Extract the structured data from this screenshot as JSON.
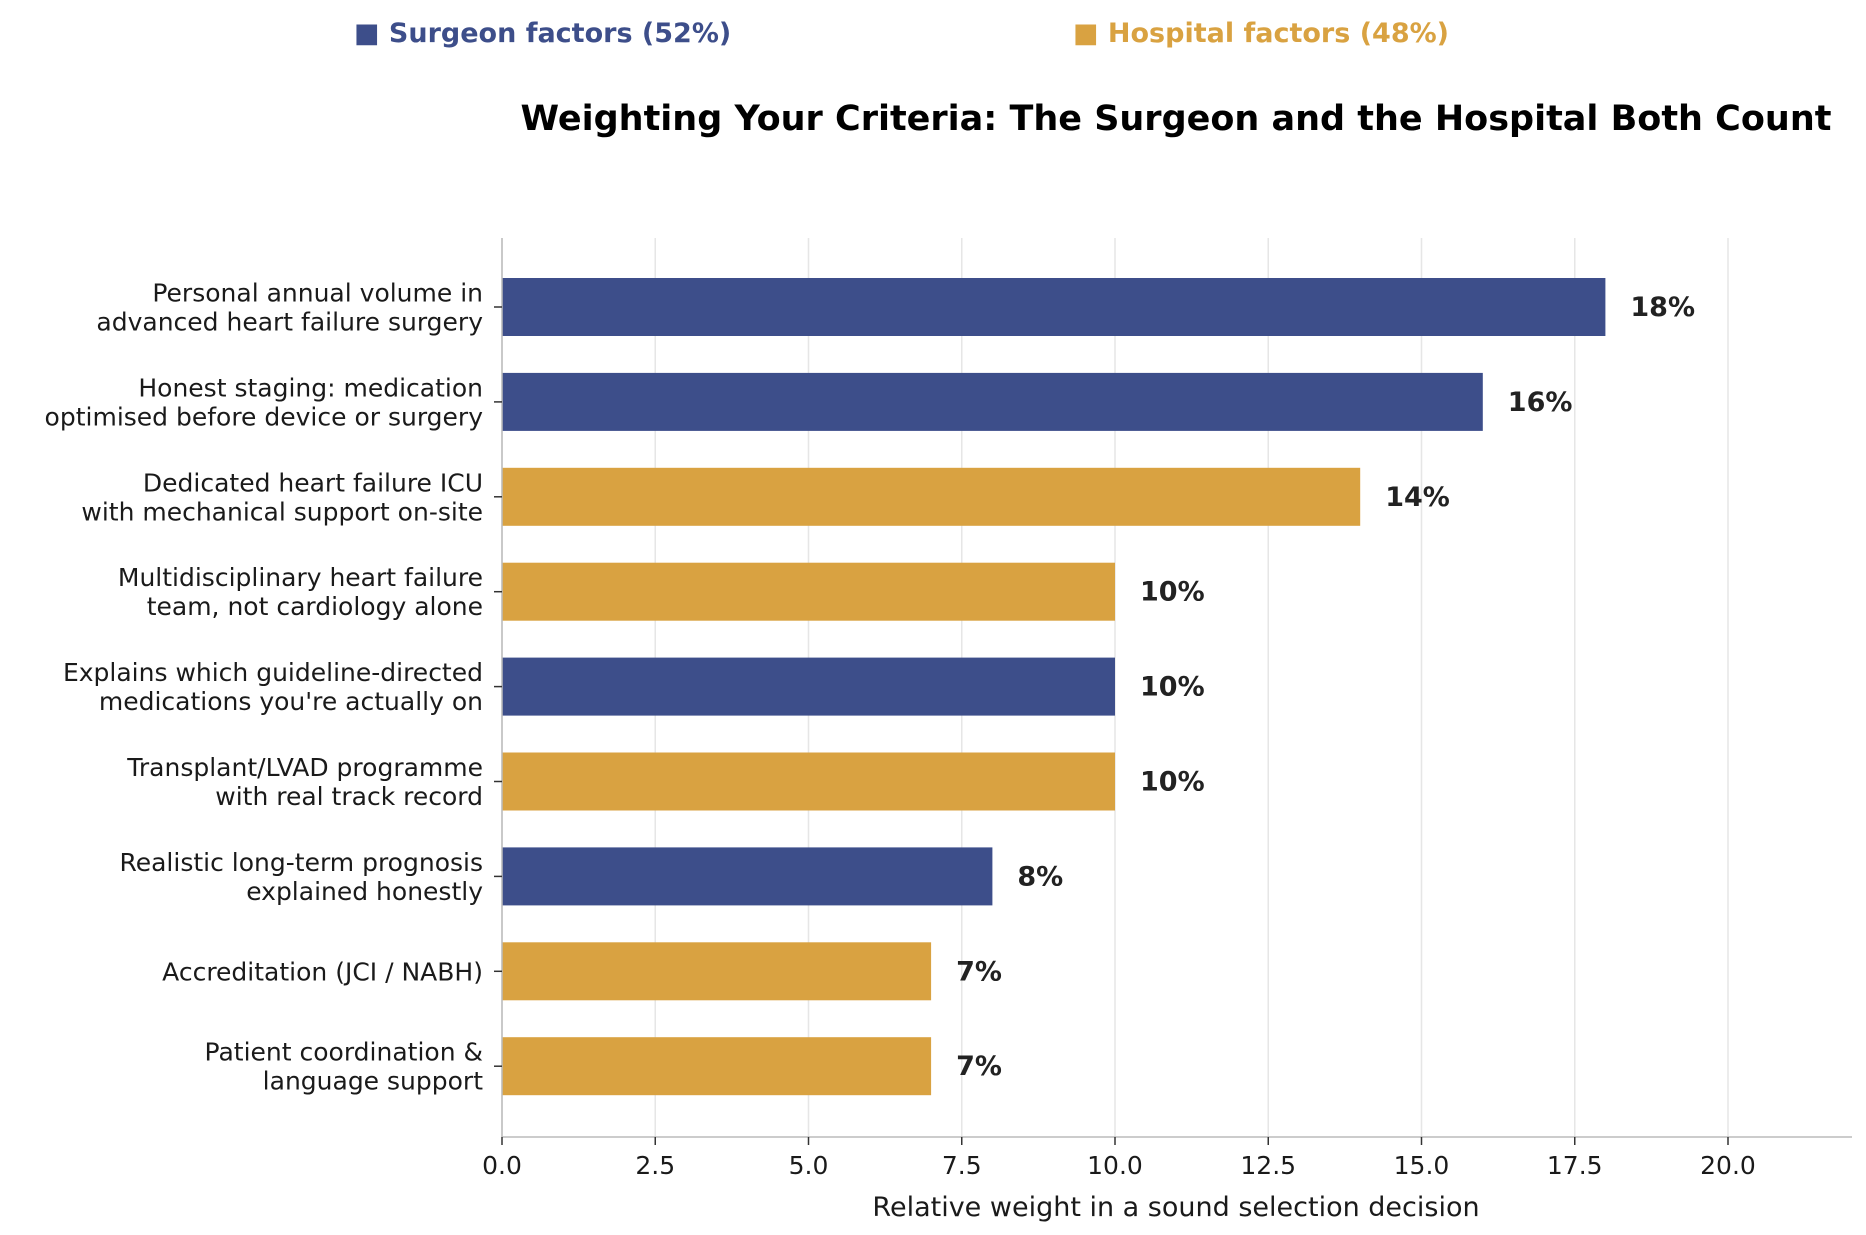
{
  "legend": {
    "surgeon_label": "■ Surgeon factors (52%)",
    "hospital_label": "■ Hospital factors (48%)"
  },
  "colors": {
    "surgeon": "#3d4e8a",
    "hospital": "#d9a241",
    "grid": "#e6e6e6",
    "axis": "#bbbbbb"
  },
  "chart_data": {
    "type": "bar",
    "orientation": "horizontal",
    "title": "Weighting Your Criteria: The Surgeon and the Hospital Both Count",
    "xlabel": "Relative weight in a sound selection decision",
    "ylabel": "",
    "xlim": [
      0,
      22
    ],
    "xticks": [
      0,
      2.5,
      5,
      7.5,
      10,
      12.5,
      15,
      17.5,
      20
    ],
    "xtick_labels": [
      "0.0",
      "2.5",
      "5.0",
      "7.5",
      "10.0",
      "12.5",
      "15.0",
      "17.5",
      "20.0"
    ],
    "grid": "vertical",
    "categories": [
      [
        "Personal annual volume in",
        "advanced heart failure surgery"
      ],
      [
        "Honest staging: medication",
        "optimised before device or surgery"
      ],
      [
        "Dedicated heart failure ICU",
        "with mechanical support on-site"
      ],
      [
        "Multidisciplinary heart failure",
        "team, not cardiology alone"
      ],
      [
        "Explains which guideline-directed",
        "medications you're actually on"
      ],
      [
        "Transplant/LVAD programme",
        "with real track record"
      ],
      [
        "Realistic long-term prognosis",
        "explained honestly"
      ],
      [
        "Accreditation (JCI / NABH)"
      ],
      [
        "Patient coordination &",
        "language support"
      ]
    ],
    "values": [
      18,
      16,
      14,
      10,
      10,
      10,
      8,
      7,
      7
    ],
    "groups": [
      "surgeon",
      "surgeon",
      "hospital",
      "hospital",
      "surgeon",
      "hospital",
      "surgeon",
      "hospital",
      "hospital"
    ],
    "value_labels": [
      "18%",
      "16%",
      "14%",
      "10%",
      "10%",
      "10%",
      "8%",
      "7%",
      "7%"
    ]
  }
}
